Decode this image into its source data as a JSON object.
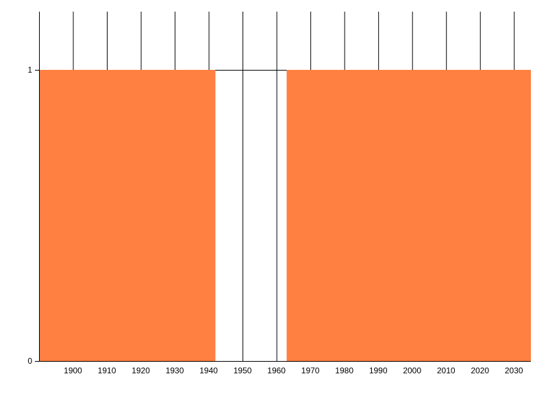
{
  "chart_data": {
    "type": "area",
    "title": "",
    "xlabel": "",
    "ylabel": "",
    "xlim": [
      1890,
      2035
    ],
    "ylim": [
      0,
      1
    ],
    "x_ticks": [
      "1900",
      "1910",
      "1920",
      "1930",
      "1940",
      "1950",
      "1960",
      "1970",
      "1980",
      "1990",
      "2000",
      "2010",
      "2020",
      "2030"
    ],
    "y_ticks": [
      "0",
      "1"
    ],
    "grid": "vertical",
    "legend": "none",
    "series": [
      {
        "color": "#ff8040",
        "segments": [
          {
            "x_start": 1890,
            "x_end": 1942,
            "value": 1
          },
          {
            "x_start": 1963,
            "x_end": 2035,
            "value": 1
          }
        ]
      }
    ]
  }
}
